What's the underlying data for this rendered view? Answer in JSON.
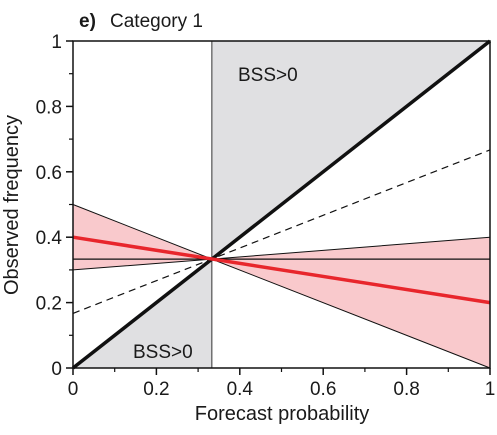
{
  "chart_data": {
    "type": "line",
    "panel_letter": "e)",
    "title": "Category 1",
    "xlabel": "Forecast probability",
    "ylabel": "Observed frequency",
    "xlim": [
      0,
      1
    ],
    "ylim": [
      0,
      1
    ],
    "xticks": [
      0,
      0.2,
      0.4,
      0.6,
      0.8,
      1
    ],
    "xtick_labels": [
      "0",
      "0.2",
      "0.4",
      "0.6",
      "0.8",
      "1"
    ],
    "yticks": [
      0,
      0.2,
      0.4,
      0.6,
      0.8,
      1
    ],
    "ytick_labels": [
      "0",
      "0.2",
      "0.4",
      "0.6",
      "0.8",
      "1"
    ],
    "climatology": 0.333,
    "skill_regions": [
      {
        "label": "BSS>0",
        "x": [
          0.333,
          1
        ],
        "fill": "#e0e0e2"
      },
      {
        "label": "BSS>0",
        "x": [
          0,
          0.333
        ],
        "fill": "#e0e0e2"
      }
    ],
    "series": [
      {
        "role": "perfect-reliability",
        "x": [
          0,
          1
        ],
        "y": [
          0,
          1
        ],
        "color": "#111111"
      },
      {
        "role": "no-skill",
        "x": [
          0,
          1
        ],
        "y": [
          0.167,
          0.667
        ],
        "color": "#111111",
        "dash": true
      },
      {
        "role": "climatology",
        "x": [
          0,
          1
        ],
        "y": [
          0.333,
          0.333
        ],
        "color": "#111111"
      },
      {
        "role": "reliability-fit",
        "x": [
          0,
          1
        ],
        "y": [
          0.4,
          0.2
        ],
        "color": "#e8262c"
      }
    ],
    "confidence_band": {
      "x": [
        0,
        0.333,
        1
      ],
      "lower": [
        0.3,
        0.333,
        0.0
      ],
      "upper": [
        0.5,
        0.333,
        0.4
      ],
      "fill": "#f9c9cc"
    }
  }
}
